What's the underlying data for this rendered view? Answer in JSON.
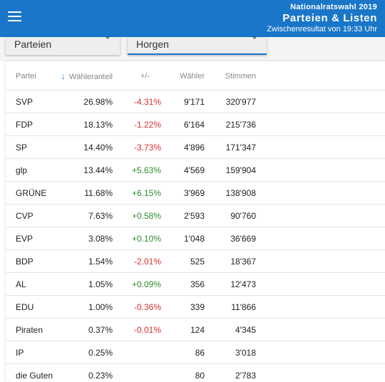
{
  "appbar": {
    "supertitle": "Nationalratswahl 2019",
    "title": "Parteien & Listen",
    "subtitle": "Zwischenresultat von 19:33 Uhr",
    "color": "#1976c8"
  },
  "filters": {
    "category": "Parteien",
    "region": "Horgen"
  },
  "table": {
    "headers": {
      "party": "Partei",
      "share": "Wähleranteil",
      "diff": "+/-",
      "voters": "Wähler",
      "votes": "Stimmen"
    },
    "rows": [
      {
        "party": "SVP",
        "share": "26.98%",
        "diff": "-4.31%",
        "voters": "9'171",
        "votes": "320'977"
      },
      {
        "party": "FDP",
        "share": "18.13%",
        "diff": "-1.22%",
        "voters": "6'164",
        "votes": "215'736"
      },
      {
        "party": "SP",
        "share": "14.40%",
        "diff": "-3.73%",
        "voters": "4'896",
        "votes": "171'347"
      },
      {
        "party": "glp",
        "share": "13.44%",
        "diff": "+5.63%",
        "voters": "4'569",
        "votes": "159'904"
      },
      {
        "party": "GRÜNE",
        "share": "11.68%",
        "diff": "+6.15%",
        "voters": "3'969",
        "votes": "138'908"
      },
      {
        "party": "CVP",
        "share": "7.63%",
        "diff": "+0.58%",
        "voters": "2'593",
        "votes": "90'760"
      },
      {
        "party": "EVP",
        "share": "3.08%",
        "diff": "+0.10%",
        "voters": "1'048",
        "votes": "36'669"
      },
      {
        "party": "BDP",
        "share": "1.54%",
        "diff": "-2.01%",
        "voters": "525",
        "votes": "18'367"
      },
      {
        "party": "AL",
        "share": "1.05%",
        "diff": "+0.09%",
        "voters": "356",
        "votes": "12'473"
      },
      {
        "party": "EDU",
        "share": "1.00%",
        "diff": "-0.36%",
        "voters": "339",
        "votes": "11'866"
      },
      {
        "party": "Piraten",
        "share": "0.37%",
        "diff": "-0.01%",
        "voters": "124",
        "votes": "4'345"
      },
      {
        "party": "IP",
        "share": "0.25%",
        "diff": "",
        "voters": "86",
        "votes": "3'018"
      },
      {
        "party": "die Guten",
        "share": "0.23%",
        "diff": "",
        "voters": "80",
        "votes": "2'783"
      }
    ]
  }
}
